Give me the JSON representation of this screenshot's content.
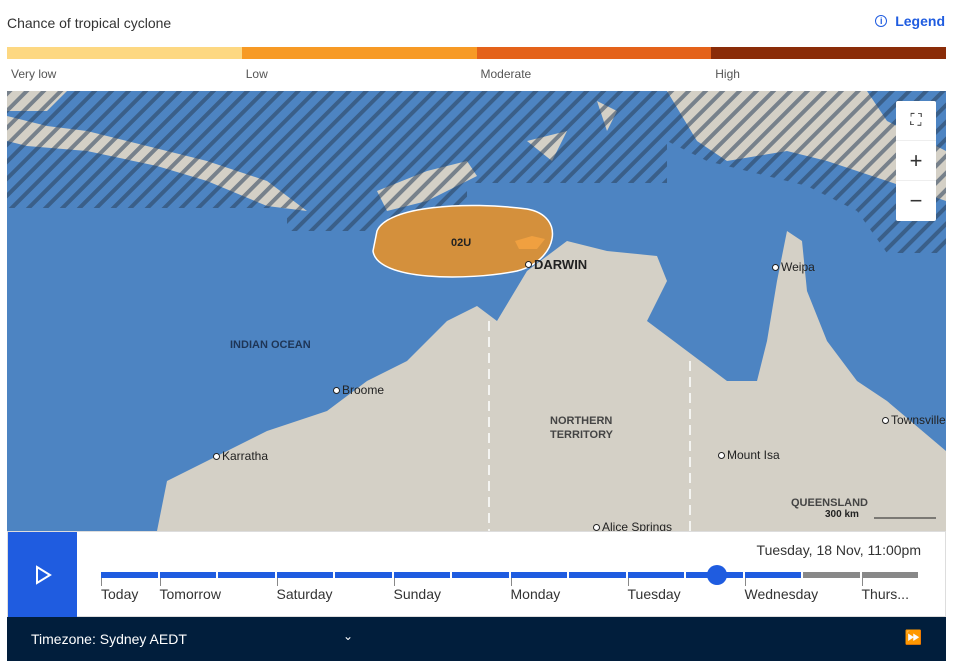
{
  "header": {
    "title": "Chance of tropical cyclone",
    "legend_label": "Legend"
  },
  "scale": [
    {
      "label": "Very low",
      "color": "#fdd882"
    },
    {
      "label": "Low",
      "color": "#f79a25"
    },
    {
      "label": "Moderate",
      "color": "#e4621a"
    },
    {
      "label": "High",
      "color": "#8a2c08"
    }
  ],
  "map": {
    "cyclone_label": "02U",
    "region_labels": [
      "INDIAN OCEAN",
      "NORTHERN",
      "TERRITORY",
      "QUEENSLAND"
    ],
    "places": [
      "DARWIN",
      "Weipa",
      "Broome",
      "Karratha",
      "Mount Isa",
      "Townsville",
      "Alice Springs"
    ],
    "scale_bar": "300 km",
    "controls": [
      "fullscreen-icon",
      "zoom-in-icon",
      "zoom-out-icon"
    ]
  },
  "timeline": {
    "timestamp": "Tuesday, 18 Nov, 11:00pm",
    "days": [
      "Today",
      "Tomorrow",
      "Saturday",
      "Sunday",
      "Monday",
      "Tuesday",
      "Wednesday",
      "Thurs..."
    ],
    "progress": 0.752,
    "active_color": "#1f5ce0",
    "future_color": "#888888"
  },
  "footer": {
    "timezone": "Timezone: Sydney AEDT"
  }
}
